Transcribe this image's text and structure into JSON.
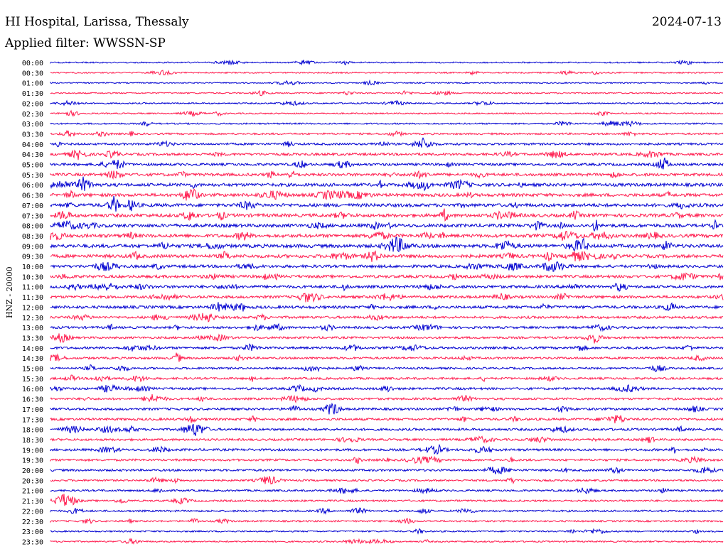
{
  "header": {
    "station": "HI Hospital, Larissa, Thessaly",
    "date": "2024-07-13",
    "filter": "Applied filter: WWSSN-SP"
  },
  "chart_data": {
    "type": "line",
    "title": "HI Hospital, Larissa, Thessaly",
    "date": "2024-07-13",
    "filter": "Applied filter: WWSSN-SP",
    "ylabel": "HNZ - 20000",
    "xlabel": "",
    "row_labels": [
      "00:00",
      "00:30",
      "01:00",
      "01:30",
      "02:00",
      "02:30",
      "03:00",
      "03:30",
      "04:00",
      "04:30",
      "05:00",
      "05:30",
      "06:00",
      "06:30",
      "07:00",
      "07:30",
      "08:00",
      "08:30",
      "09:00",
      "09:30",
      "10:00",
      "10:30",
      "11:00",
      "11:30",
      "12:00",
      "12:30",
      "13:00",
      "13:30",
      "14:00",
      "14:30",
      "15:00",
      "15:30",
      "16:00",
      "16:30",
      "17:00",
      "17:30",
      "18:00",
      "18:30",
      "19:00",
      "19:30",
      "20:00",
      "20:30",
      "21:00",
      "21:30",
      "22:00",
      "22:30",
      "23:00",
      "23:30"
    ],
    "activity_level": [
      0.15,
      0.15,
      0.1,
      0.15,
      0.15,
      0.15,
      0.2,
      0.3,
      0.4,
      0.5,
      0.5,
      0.6,
      0.7,
      0.7,
      0.75,
      0.75,
      0.75,
      0.75,
      0.8,
      0.75,
      0.6,
      0.6,
      0.6,
      0.55,
      0.6,
      0.5,
      0.45,
      0.4,
      0.45,
      0.4,
      0.35,
      0.4,
      0.45,
      0.4,
      0.45,
      0.45,
      0.45,
      0.4,
      0.45,
      0.4,
      0.4,
      0.3,
      0.3,
      0.3,
      0.3,
      0.25,
      0.2,
      0.2
    ],
    "grid": false,
    "legend": "none"
  },
  "colors": {
    "even_row": "#0000d0",
    "odd_row": "#ff1a4d",
    "text": "#000000",
    "background": "#ffffff"
  }
}
